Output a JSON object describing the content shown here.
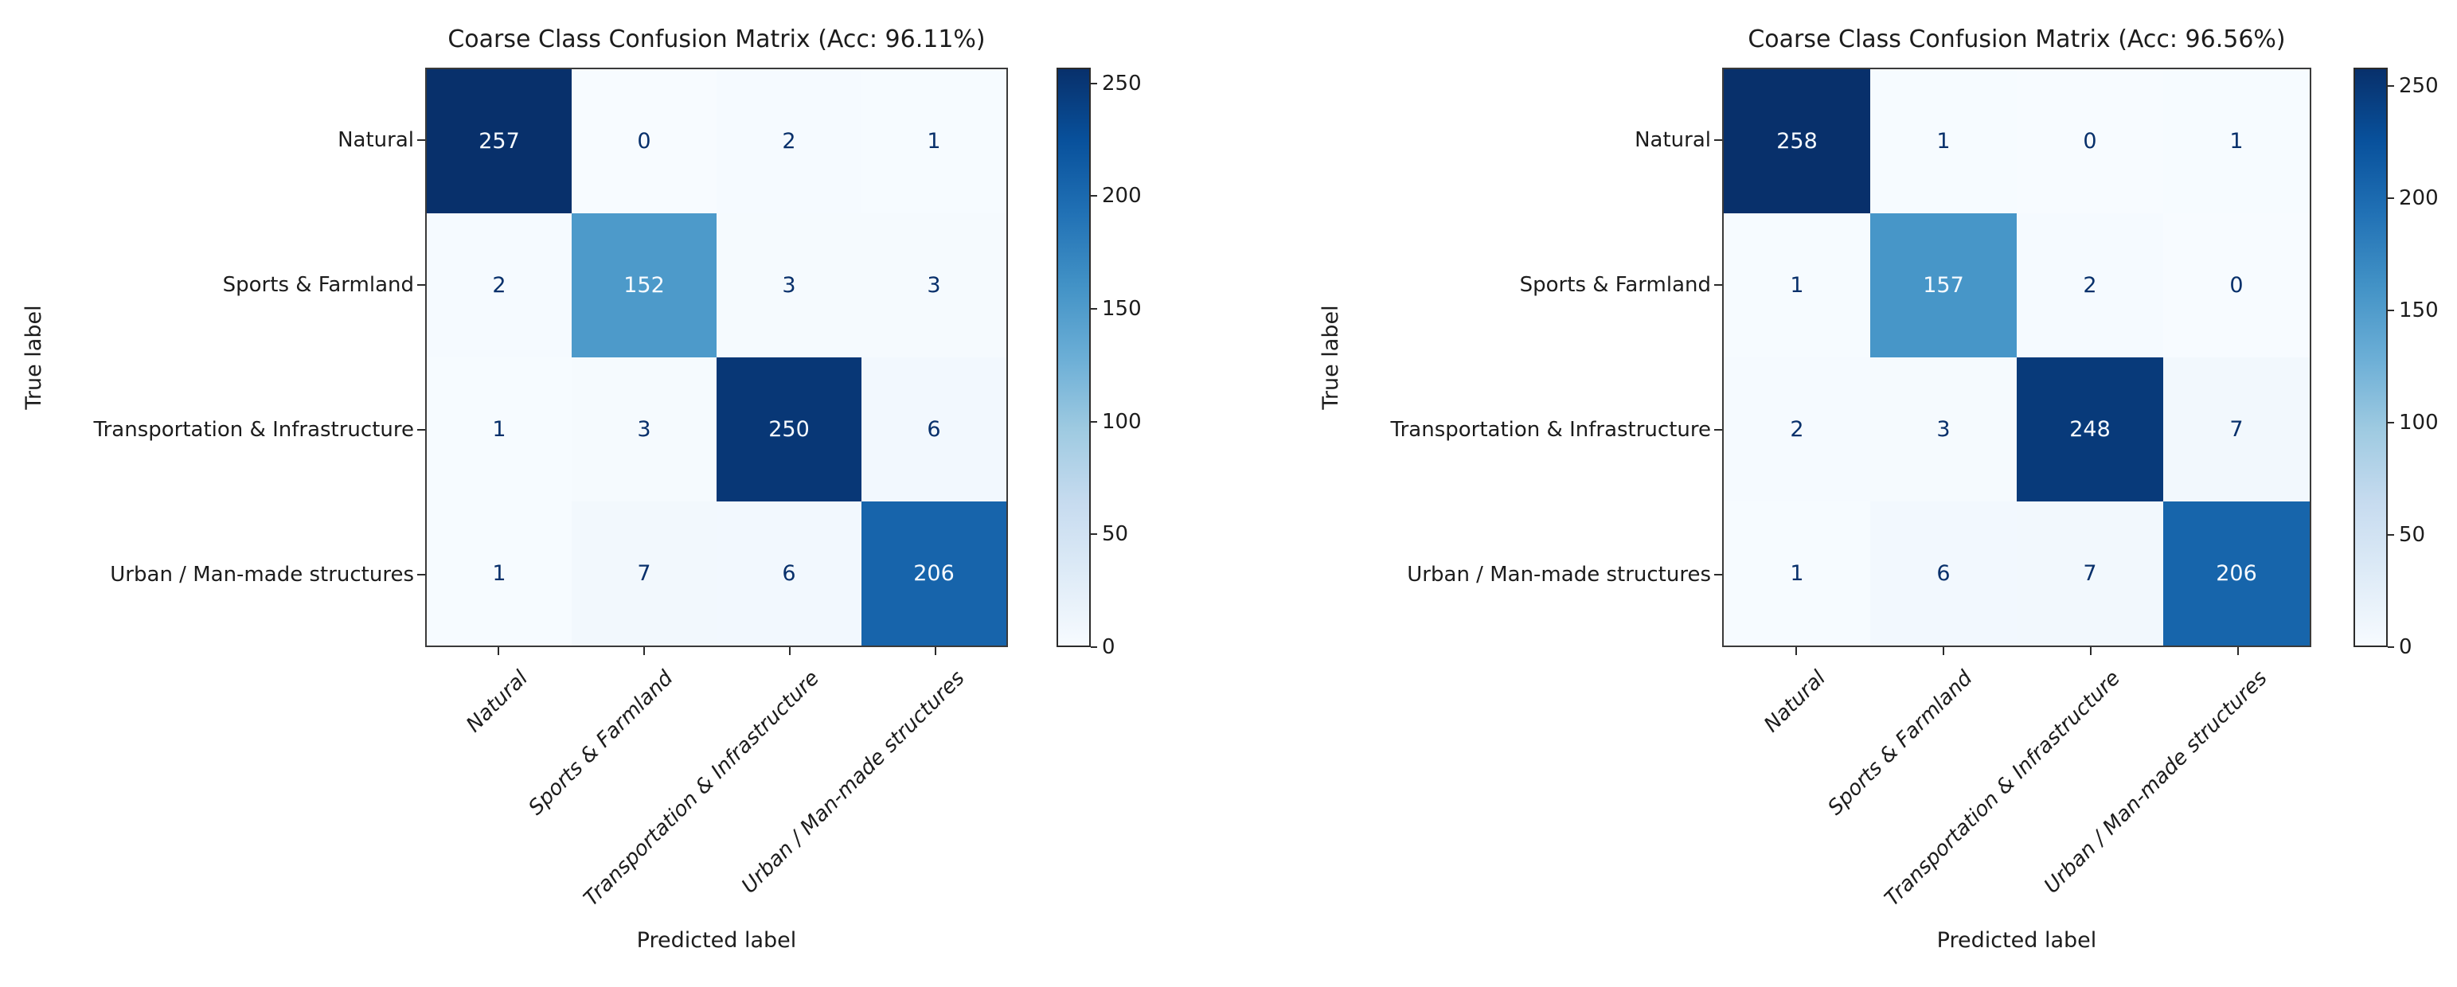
{
  "page": {
    "background": "#ffffff",
    "description": "Two side-by-side confusion matrix heatmaps"
  },
  "colors": {
    "cmap_name": "Blues",
    "cmap_low": "#f7fbff",
    "cmap_high": "#08306b",
    "cell_text_dark": "#08306b",
    "cell_text_light": "#f7fbff",
    "axis_text": "#1c1c1c",
    "spine": "#3a3a3a"
  },
  "chart_data": [
    {
      "type": "heatmap",
      "title": "Coarse Class Confusion Matrix (Acc: 96.11%)",
      "accuracy": "96.11%",
      "xlabel": "Predicted label",
      "ylabel": "True label",
      "categories": [
        "Natural",
        "Sports & Farmland",
        "Transportation & Infrastructure",
        "Urban / Man-made structures"
      ],
      "matrix": [
        [
          257,
          0,
          2,
          1
        ],
        [
          2,
          152,
          3,
          3
        ],
        [
          1,
          3,
          250,
          6
        ],
        [
          1,
          7,
          6,
          206
        ]
      ],
      "vmin": 0,
      "vmax": 257,
      "colorbar_ticks": [
        0,
        50,
        100,
        150,
        200,
        250
      ],
      "colormap": "Blues",
      "grid": false,
      "legend": "colorbar-right"
    },
    {
      "type": "heatmap",
      "title": "Coarse Class Confusion Matrix (Acc: 96.56%)",
      "accuracy": "96.56%",
      "xlabel": "Predicted label",
      "ylabel": "True label",
      "categories": [
        "Natural",
        "Sports & Farmland",
        "Transportation & Infrastructure",
        "Urban / Man-made structures"
      ],
      "matrix": [
        [
          258,
          1,
          0,
          1
        ],
        [
          1,
          157,
          2,
          0
        ],
        [
          2,
          3,
          248,
          7
        ],
        [
          1,
          6,
          7,
          206
        ]
      ],
      "vmin": 0,
      "vmax": 258,
      "colorbar_ticks": [
        0,
        50,
        100,
        150,
        200,
        250
      ],
      "colormap": "Blues",
      "grid": false,
      "legend": "colorbar-right"
    }
  ]
}
